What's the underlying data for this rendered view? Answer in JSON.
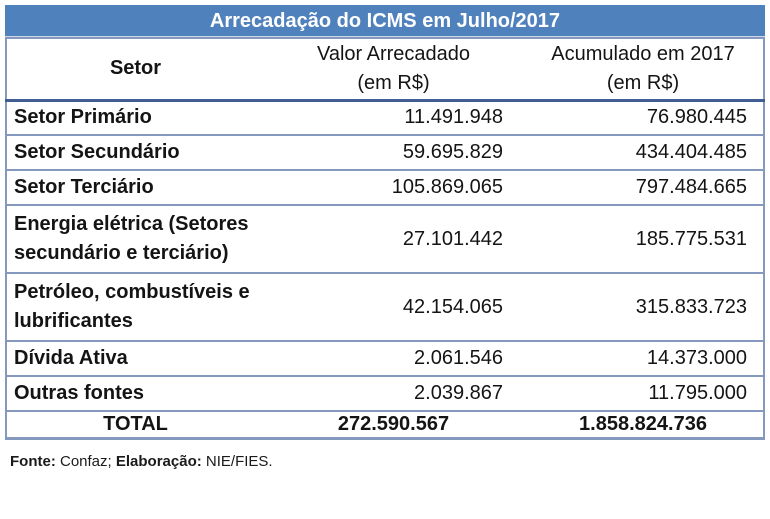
{
  "title": "Arrecadação do ICMS em Julho/2017",
  "header": {
    "setor": "Setor",
    "valor_line1": "Valor Arrecadado",
    "valor_line2": "(em R$)",
    "acumulado_line1": "Acumulado em 2017",
    "acumulado_line2": "(em R$)"
  },
  "rows": [
    {
      "setor": "Setor Primário",
      "valor": "11.491.948",
      "acumulado": "76.980.445",
      "two_line": false
    },
    {
      "setor": "Setor Secundário",
      "valor": "59.695.829",
      "acumulado": "434.404.485",
      "two_line": false
    },
    {
      "setor": "Setor Terciário",
      "valor": "105.869.065",
      "acumulado": "797.484.665",
      "two_line": false
    },
    {
      "setor": "Energia elétrica (Setores\nsecundário e terciário)",
      "valor": "27.101.442",
      "acumulado": "185.775.531",
      "two_line": true
    },
    {
      "setor": "Petróleo, combustíveis e\nlubrificantes",
      "valor": "42.154.065",
      "acumulado": "315.833.723",
      "two_line": true
    },
    {
      "setor": "Dívida Ativa",
      "valor": "2.061.546",
      "acumulado": "14.373.000",
      "two_line": false
    },
    {
      "setor": "Outras fontes",
      "valor": "2.039.867",
      "acumulado": "11.795.000",
      "two_line": false
    }
  ],
  "total": {
    "label": "TOTAL",
    "valor": "272.590.567",
    "acumulado": "1.858.824.736"
  },
  "footer": {
    "fonte_label": "Fonte:",
    "fonte_value": "Confaz;",
    "elab_label": "Elaboração:",
    "elab_value": "NIE/FIES."
  },
  "colors": {
    "title_bg": "#4f81bd",
    "title_text": "#ffffff",
    "border": "#8499bd",
    "header_border": "#415e94"
  },
  "chart_data": {
    "type": "table",
    "title": "Arrecadação do ICMS em Julho/2017",
    "columns": [
      "Setor",
      "Valor Arrecadado (em R$)",
      "Acumulado em 2017 (em R$)"
    ],
    "rows": [
      [
        "Setor Primário",
        11491948,
        76980445
      ],
      [
        "Setor Secundário",
        59695829,
        434404485
      ],
      [
        "Setor Terciário",
        105869065,
        797484665
      ],
      [
        "Energia elétrica (Setores secundário e terciário)",
        27101442,
        185775531
      ],
      [
        "Petróleo, combustíveis e lubrificantes",
        42154065,
        315833723
      ],
      [
        "Dívida Ativa",
        2061546,
        14373000
      ],
      [
        "Outras fontes",
        2039867,
        11795000
      ]
    ],
    "total_row": [
      "TOTAL",
      272590567,
      1858824736
    ],
    "source_note": "Fonte: Confaz; Elaboração: NIE/FIES."
  }
}
